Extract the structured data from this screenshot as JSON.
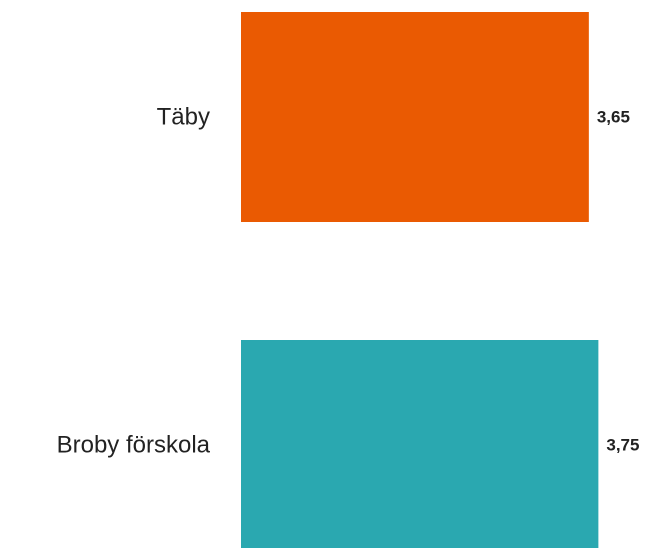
{
  "chart_data": {
    "type": "bar",
    "orientation": "horizontal",
    "categories": [
      "Täby",
      "Broby förskola"
    ],
    "values": [
      3.65,
      3.75
    ],
    "value_labels": [
      "3,65",
      "3,75"
    ],
    "colors": [
      "#EA5A02",
      "#2AA8B0"
    ],
    "title": "",
    "xlabel": "",
    "ylabel": "",
    "grid": false,
    "legend": "none"
  }
}
